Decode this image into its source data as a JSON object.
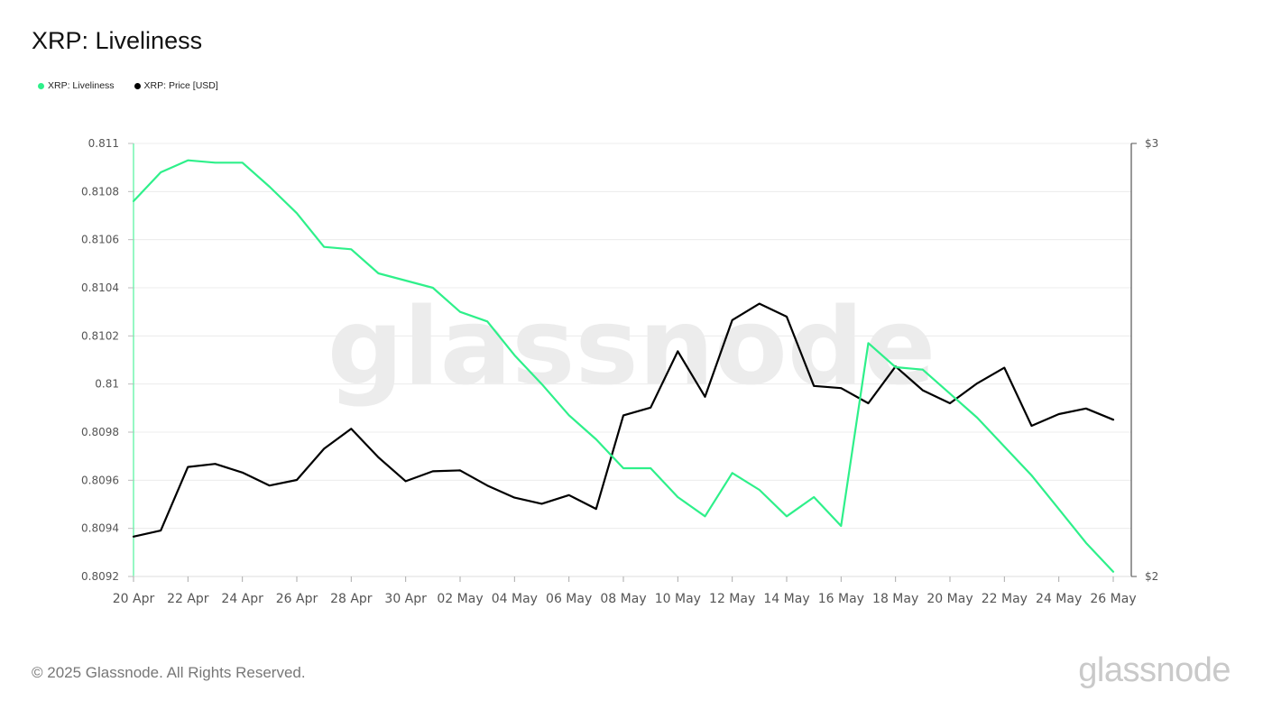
{
  "title": "XRP: Liveliness",
  "legend": [
    {
      "label": "XRP: Liveliness",
      "color": "#2ef08a"
    },
    {
      "label": "XRP: Price [USD]",
      "color": "#000000"
    }
  ],
  "watermark": "glassnode",
  "footer": {
    "copyright": "© 2025 Glassnode. All Rights Reserved.",
    "brand": "glassnode"
  },
  "chart_data": {
    "type": "line",
    "x": [
      "20 Apr",
      "21 Apr",
      "22 Apr",
      "23 Apr",
      "24 Apr",
      "25 Apr",
      "26 Apr",
      "27 Apr",
      "28 Apr",
      "29 Apr",
      "30 Apr",
      "01 May",
      "02 May",
      "03 May",
      "04 May",
      "05 May",
      "06 May",
      "07 May",
      "08 May",
      "09 May",
      "10 May",
      "11 May",
      "12 May",
      "13 May",
      "14 May",
      "15 May",
      "16 May",
      "17 May",
      "18 May",
      "19 May",
      "20 May",
      "21 May",
      "22 May",
      "23 May",
      "24 May",
      "25 May",
      "26 May"
    ],
    "x_tick_labels": [
      "20 Apr",
      "22 Apr",
      "24 Apr",
      "26 Apr",
      "28 Apr",
      "30 Apr",
      "02 May",
      "04 May",
      "06 May",
      "08 May",
      "10 May",
      "12 May",
      "14 May",
      "16 May",
      "18 May",
      "20 May",
      "22 May",
      "24 May",
      "26 May"
    ],
    "y_left": {
      "ylim": [
        0.8092,
        0.811
      ],
      "ticks": [
        "0.811",
        "0.8108",
        "0.8106",
        "0.8104",
        "0.8102",
        "0.81",
        "0.8098",
        "0.8096",
        "0.8094",
        "0.8092"
      ]
    },
    "y_right": {
      "ylim": [
        2,
        3
      ],
      "ticks": [
        "$3",
        "$2"
      ]
    },
    "grid": true,
    "series": [
      {
        "name": "XRP: Liveliness",
        "axis": "left",
        "color": "#2ef08a",
        "values": [
          0.81076,
          0.81088,
          0.81093,
          0.81092,
          0.81092,
          0.81082,
          0.81071,
          0.81057,
          0.81056,
          0.81046,
          0.81043,
          0.8104,
          0.8103,
          0.81026,
          0.81012,
          0.81,
          0.80987,
          0.80977,
          0.80965,
          0.80965,
          0.80953,
          0.80945,
          0.80963,
          0.80956,
          0.80945,
          0.80953,
          0.80941,
          0.81017,
          0.81007,
          0.81006,
          0.80996,
          0.80986,
          0.80974,
          0.80962,
          0.80948,
          0.80934,
          0.80922
        ]
      },
      {
        "name": "XRP: Price [USD]",
        "axis": "right",
        "color": "#000000",
        "values": [
          2.092,
          2.106,
          2.253,
          2.26,
          2.24,
          2.21,
          2.223,
          2.295,
          2.341,
          2.275,
          2.22,
          2.243,
          2.245,
          2.21,
          2.182,
          2.168,
          2.188,
          2.156,
          2.372,
          2.39,
          2.52,
          2.415,
          2.592,
          2.63,
          2.6,
          2.44,
          2.435,
          2.4,
          2.485,
          2.43,
          2.4,
          2.446,
          2.482,
          2.348,
          2.375,
          2.388,
          2.362
        ]
      }
    ]
  }
}
